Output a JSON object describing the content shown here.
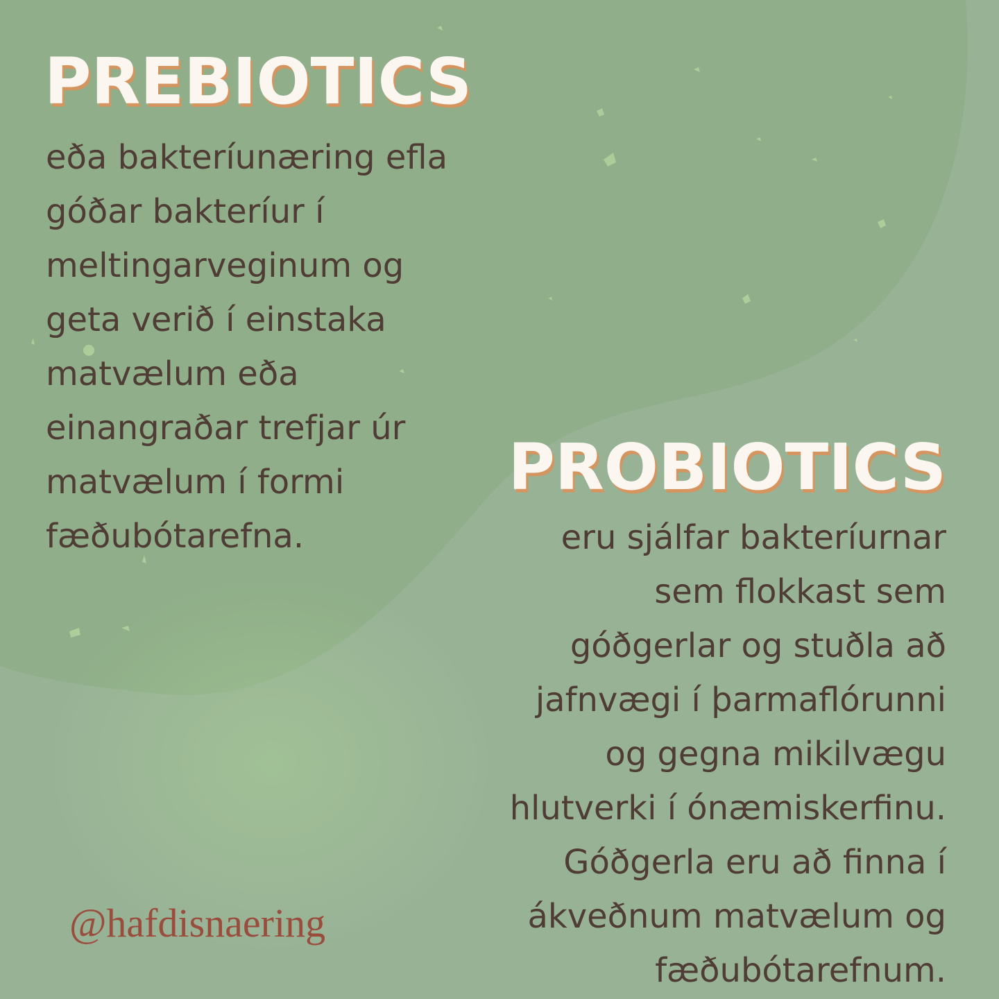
{
  "prebiotics": {
    "title": "PREBIOTICS",
    "lines": [
      "eða bakteríunæring efla",
      "góðar bakteríur í",
      "meltingarveginum og",
      "geta verið í einstaka",
      "matvælum eða",
      "einangraðar trefjar úr",
      "matvælum í formi",
      "fæðubótarefna."
    ]
  },
  "probiotics": {
    "title": "PROBIOTICS",
    "lines": [
      "eru sjálfar bakteríurnar",
      "sem flokkast sem",
      "góðgerlar og stuðla að",
      "jafnvægi í þarmaflórunni",
      "og gegna mikilvægu",
      "hlutverki í ónæmiskerfinu.",
      "Góðgerla eru að finna í",
      "ákveðnum matvælum og",
      "fæðubótarefnum."
    ]
  },
  "footer": {
    "handle": "@hafdisnaering"
  },
  "colors": {
    "background": "#98b296",
    "blob": "#8fae89",
    "title_fill": "#fbf7f0",
    "title_shadow": "#d49560",
    "body_text": "#4e3c35",
    "handle": "#9a4d3d",
    "speckle": "#b3d29e"
  }
}
